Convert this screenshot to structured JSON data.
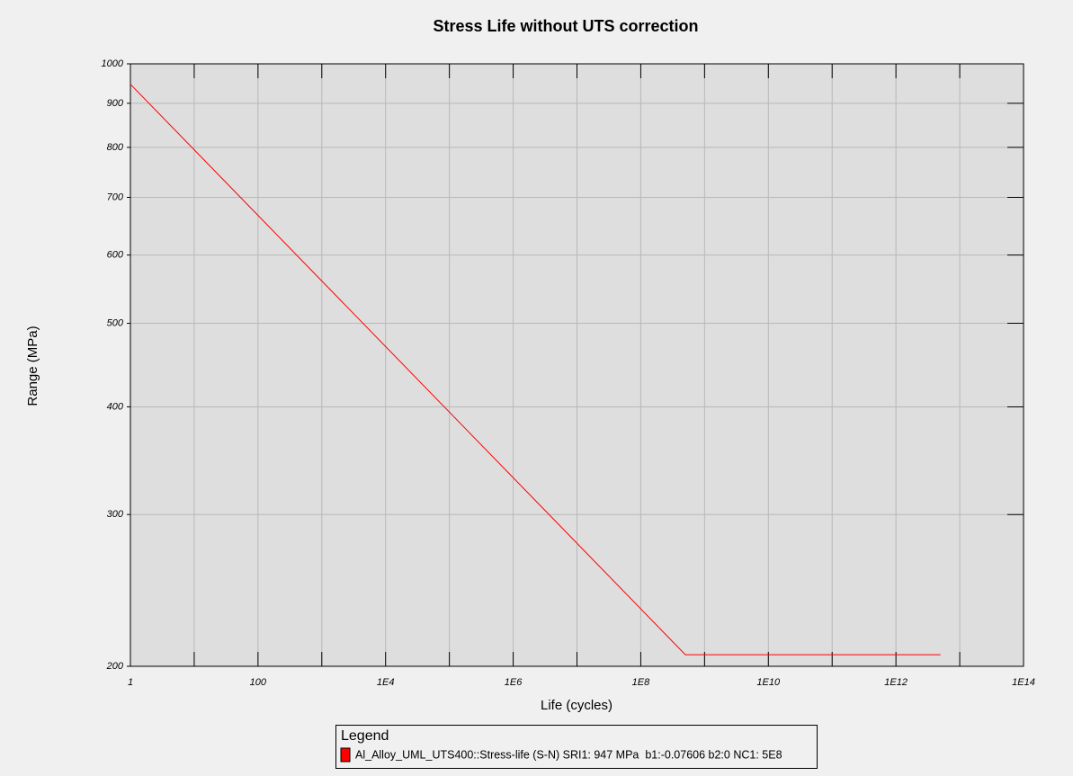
{
  "chart_data": {
    "type": "line",
    "title": "Stress Life without UTS correction",
    "x_label": "Life (cycles)",
    "y_label": "Range (MPa)",
    "x": [
      1,
      500000000,
      5000000000000
    ],
    "series": [
      {
        "name": "Al_Alloy_UML_UTS400::Stress-life (S-N) SRI1: 947 MPa  b1:-0.07606 b2:0 NC1: 5E8",
        "color": "#ff0000",
        "values": [
          947,
          206.3,
          206.3
        ]
      }
    ],
    "xlim": [
      1,
      100000000000000
    ],
    "ylim": [
      200,
      1000
    ],
    "xticks": [
      1,
      100,
      {
        "value": 10000,
        "label": "1E4"
      },
      {
        "value": 1000000,
        "label": "1E6"
      },
      {
        "value": 100000000,
        "label": "1E8"
      },
      {
        "value": 10000000000,
        "label": "1E10"
      },
      {
        "value": 1000000000000,
        "label": "1E12"
      },
      {
        "value": 100000000000000,
        "label": "1E14"
      }
    ],
    "yticks": [
      200,
      300,
      400,
      500,
      600,
      700,
      800,
      900,
      1000
    ],
    "x_log": true,
    "y_log": true,
    "grid": true,
    "legend_title": "Legend",
    "legend_position": "bottom"
  }
}
